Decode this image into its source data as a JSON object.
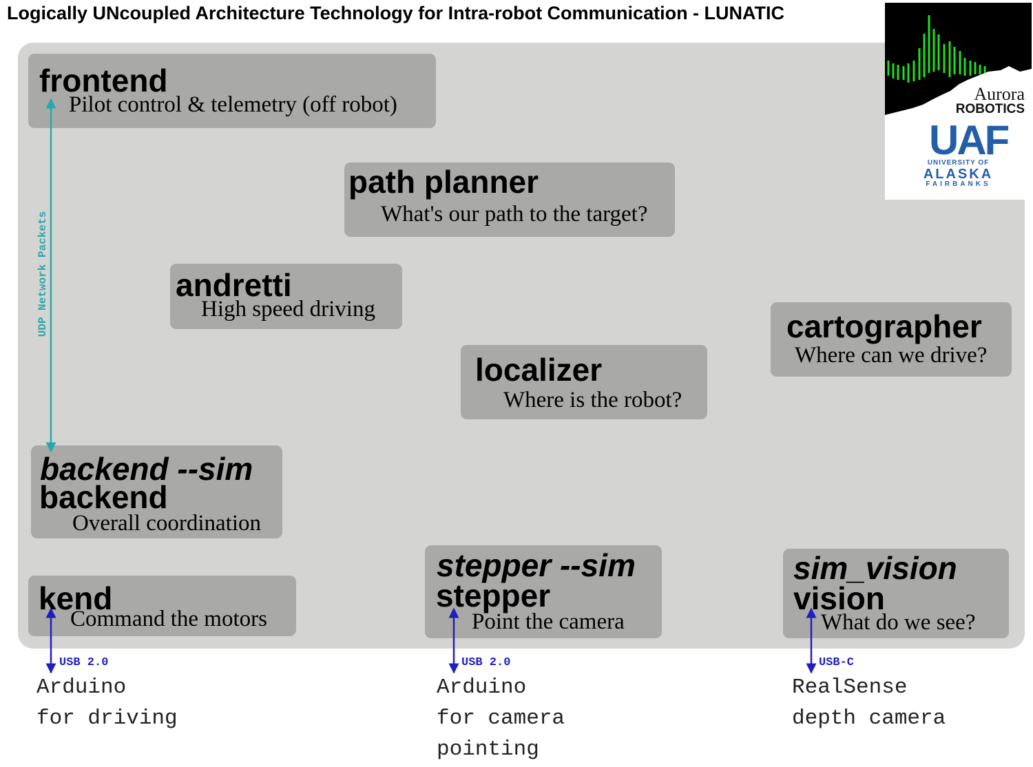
{
  "title": "Logically UNcoupled Architecture Technology for Intra-robot Communication - LUNATIC",
  "colors": {
    "panel": "#d4d5d3",
    "box": "#a9aaa8",
    "udp_arrow": "#2aa7ad",
    "usb_arrow": "#1f1fc0",
    "uaf_blue": "#235ea8",
    "aurora_green": "#22dd22"
  },
  "modules": {
    "frontend": {
      "name": "frontend",
      "desc": "Pilot control & telemetry (off robot)"
    },
    "pathplanner": {
      "name": "path planner",
      "desc": "What's our path to the target?"
    },
    "andretti": {
      "name": "andretti",
      "desc": "High speed driving"
    },
    "cartographer": {
      "name": "cartographer",
      "desc": "Where can we drive?"
    },
    "localizer": {
      "name": "localizer",
      "desc": "Where is the robot?"
    },
    "backend": {
      "sim_name": "backend --sim",
      "name": "backend",
      "desc": "Overall coordination"
    },
    "kend": {
      "name": "kend",
      "desc": "Command the motors"
    },
    "stepper": {
      "sim_name": "stepper --sim",
      "name": "stepper",
      "desc": "Point the camera"
    },
    "vision": {
      "sim_name": "sim_vision",
      "name": "vision",
      "desc": "What do we see?"
    }
  },
  "links": {
    "udp": "UDP Network Packets",
    "kend_usb": "USB 2.0",
    "stepper_usb": "USB 2.0",
    "vision_usb": "USB-C"
  },
  "devices": {
    "driving": [
      "Arduino",
      "for driving"
    ],
    "camera_pointing": [
      "Arduino",
      "for camera",
      "pointing"
    ],
    "depth": [
      "RealSense",
      "depth camera"
    ]
  },
  "logo": {
    "aurora": "Aurora",
    "robotics": "ROBOTICS",
    "uaf": "UAF",
    "university_of": "UNIVERSITY OF",
    "alaska": "ALASKA",
    "fairbanks": "FAIRBANKS"
  }
}
